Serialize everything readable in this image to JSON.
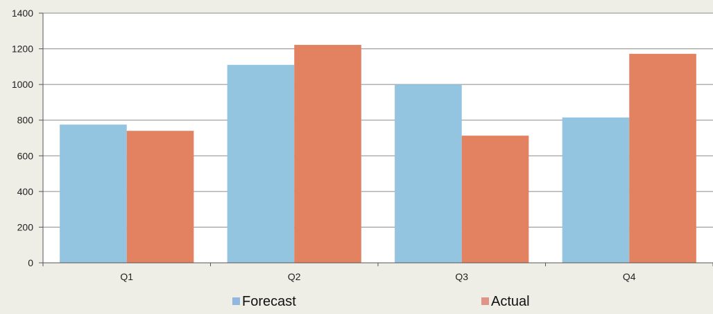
{
  "chart_data": {
    "type": "bar",
    "categories": [
      "Q1",
      "Q2",
      "Q3",
      "Q4"
    ],
    "series": [
      {
        "name": "Forecast",
        "values": [
          775,
          1110,
          1000,
          815
        ],
        "color": "#93c4e0"
      },
      {
        "name": "Actual",
        "values": [
          740,
          1222,
          713,
          1172
        ],
        "color": "#e38261"
      }
    ],
    "ylim": [
      0,
      1400
    ],
    "yticks": [
      0,
      200,
      400,
      600,
      800,
      1000,
      1200,
      1400
    ],
    "grid": true,
    "legend": "bottom",
    "background": "#eeede6",
    "plot_background": "#ffffff",
    "legend_swatch_colors": [
      "#93b8df",
      "#e09488"
    ]
  }
}
